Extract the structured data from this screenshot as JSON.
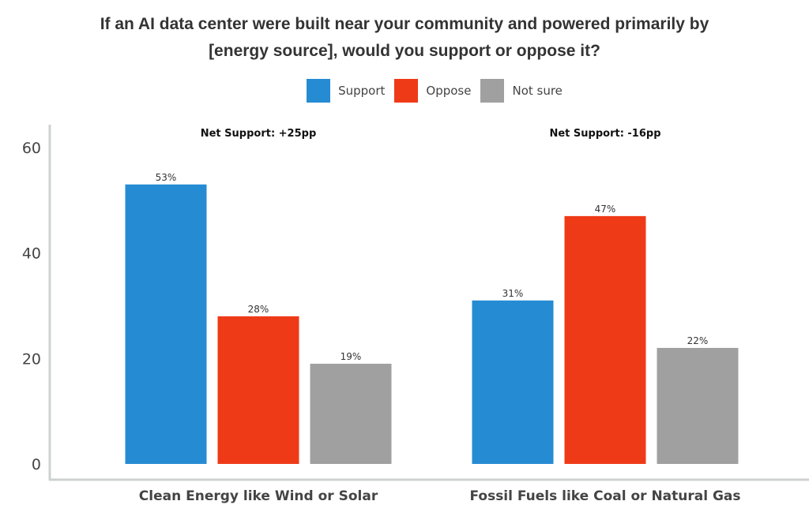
{
  "chart_data": {
    "type": "bar",
    "title_lines": [
      "If an AI data center were built near your community and powered primarily by",
      "[energy source], would you support or oppose it?"
    ],
    "categories": [
      "Clean Energy like Wind or Solar",
      "Fossil Fuels like Coal or Natural Gas"
    ],
    "annotations": [
      "Net Support: +25pp",
      "Net Support: -16pp"
    ],
    "series": [
      {
        "name": "Support",
        "color": "#258bd3",
        "values": [
          53,
          31
        ],
        "labels": [
          "53%",
          "31%"
        ]
      },
      {
        "name": "Oppose",
        "color": "#ef3a17",
        "values": [
          28,
          47
        ],
        "labels": [
          "28%",
          "47%"
        ]
      },
      {
        "name": "Not sure",
        "color": "#a0a0a0",
        "values": [
          19,
          22
        ],
        "labels": [
          "19%",
          "22%"
        ]
      }
    ],
    "ylim": [
      0,
      60
    ],
    "yticks": [
      0,
      20,
      40,
      60
    ],
    "xlabel": "",
    "ylabel": "",
    "grid": false,
    "legend_position": "top-center"
  }
}
